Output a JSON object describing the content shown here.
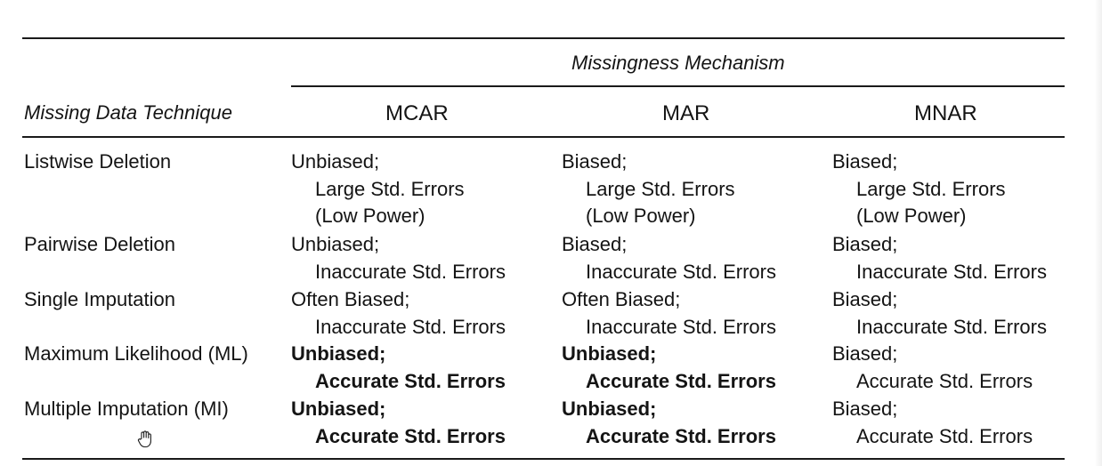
{
  "table": {
    "group_header": "Missingness Mechanism",
    "row_header": "Missing Data Technique",
    "columns": [
      "MCAR",
      "MAR",
      "MNAR"
    ],
    "rows": [
      {
        "technique": "Listwise Deletion",
        "cells": [
          {
            "line1": "Unbiased;",
            "line2": "Large Std. Errors",
            "line3": "(Low Power)",
            "bold": false
          },
          {
            "line1": "Biased;",
            "line2": "Large Std. Errors",
            "line3": "(Low Power)",
            "bold": false
          },
          {
            "line1": "Biased;",
            "line2": "Large Std. Errors",
            "line3": "(Low Power)",
            "bold": false
          }
        ]
      },
      {
        "technique": "Pairwise Deletion",
        "cells": [
          {
            "line1": "Unbiased;",
            "line2": "Inaccurate Std. Errors",
            "bold": false
          },
          {
            "line1": "Biased;",
            "line2": "Inaccurate Std. Errors",
            "bold": false
          },
          {
            "line1": "Biased;",
            "line2": "Inaccurate Std. Errors",
            "bold": false
          }
        ]
      },
      {
        "technique": "Single Imputation",
        "cells": [
          {
            "line1": "Often Biased;",
            "line2": "Inaccurate Std. Errors",
            "bold": false
          },
          {
            "line1": "Often Biased;",
            "line2": "Inaccurate Std. Errors",
            "bold": false
          },
          {
            "line1": "Biased;",
            "line2": "Inaccurate Std. Errors",
            "bold": false
          }
        ]
      },
      {
        "technique": "Maximum Likelihood (ML)",
        "cells": [
          {
            "line1": "Unbiased;",
            "line2": "Accurate Std. Errors",
            "bold": true
          },
          {
            "line1": "Unbiased;",
            "line2": "Accurate Std. Errors",
            "bold": true
          },
          {
            "line1": "Biased;",
            "line2": "Accurate Std. Errors",
            "bold": false
          }
        ]
      },
      {
        "technique": "Multiple Imputation (MI)",
        "cells": [
          {
            "line1": "Unbiased;",
            "line2": "Accurate Std. Errors",
            "bold": true
          },
          {
            "line1": "Unbiased;",
            "line2": "Accurate Std. Errors",
            "bold": true
          },
          {
            "line1": "Biased;",
            "line2": "Accurate Std. Errors",
            "bold": false
          }
        ]
      }
    ]
  },
  "cursor": {
    "icon": "hand-pointer-icon"
  }
}
